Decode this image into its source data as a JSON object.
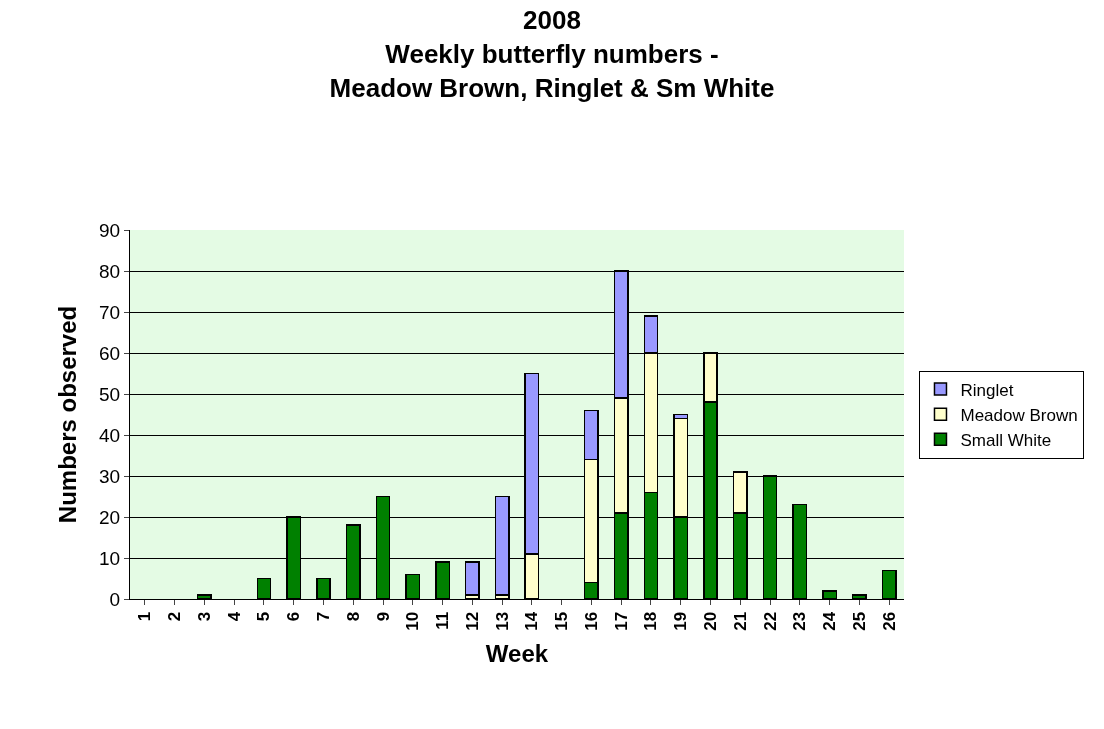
{
  "chart_data": {
    "type": "bar",
    "title": "2008\nWeekly butterfly numbers -\nMeadow Brown, Ringlet & Sm White",
    "xlabel": "Week",
    "ylabel": "Numbers observed",
    "categories": [
      "1",
      "2",
      "3",
      "4",
      "5",
      "6",
      "7",
      "8",
      "9",
      "10",
      "11",
      "12",
      "13",
      "14",
      "15",
      "16",
      "17",
      "18",
      "19",
      "20",
      "21",
      "22",
      "23",
      "24",
      "25",
      "26"
    ],
    "stacked": true,
    "ylim": [
      0,
      90
    ],
    "yticks": [
      0,
      10,
      20,
      30,
      40,
      50,
      60,
      70,
      80,
      90
    ],
    "grid": "y",
    "legend": "right",
    "series": [
      {
        "name": "Small White",
        "color": "#008000",
        "values": [
          null,
          null,
          1,
          null,
          5,
          20,
          5,
          18,
          25,
          6,
          9,
          null,
          null,
          null,
          null,
          4,
          21,
          26,
          20,
          48,
          21,
          30,
          23,
          2,
          1,
          7
        ]
      },
      {
        "name": "Meadow Brown",
        "color": "#ffffcc",
        "values": [
          null,
          null,
          null,
          null,
          null,
          null,
          null,
          null,
          null,
          null,
          null,
          1,
          1,
          11,
          null,
          30,
          28,
          34,
          24,
          12,
          10,
          null,
          null,
          null,
          null,
          null
        ]
      },
      {
        "name": "Ringlet",
        "color": "#9999ff",
        "values": [
          null,
          null,
          null,
          null,
          null,
          null,
          null,
          null,
          null,
          null,
          null,
          8,
          24,
          44,
          null,
          12,
          31,
          9,
          1,
          null,
          null,
          null,
          null,
          null,
          null,
          null
        ]
      }
    ]
  }
}
